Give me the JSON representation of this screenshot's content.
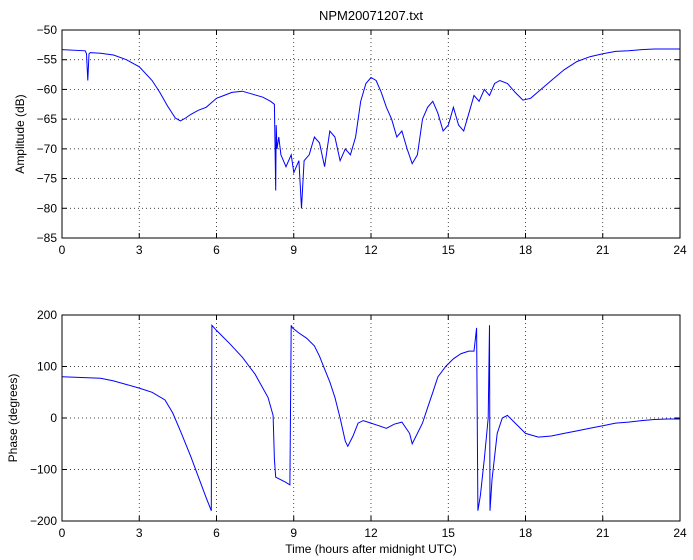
{
  "chart_data": [
    {
      "type": "line",
      "title": "NPM20071207.txt",
      "xlabel": "",
      "ylabel": "Amplitude (dB)",
      "xlim": [
        0,
        24
      ],
      "ylim": [
        -85,
        -50
      ],
      "xticks": [
        0,
        3,
        6,
        9,
        12,
        15,
        18,
        21,
        24
      ],
      "xtick_labels": [
        "0",
        "3",
        "6",
        "9",
        "12",
        "15",
        "18",
        "21",
        "24"
      ],
      "yticks": [
        -85,
        -80,
        -75,
        -70,
        -65,
        -60,
        -55,
        -50
      ],
      "ytick_labels": [
        "−85",
        "−80",
        "−75",
        "−70",
        "−65",
        "−60",
        "−55",
        "−50"
      ],
      "grid": true,
      "series": [
        {
          "color": "#0000ff",
          "x": [
            0,
            0.9,
            0.95,
            1.0,
            1.05,
            1.1,
            1.5,
            2.0,
            2.5,
            3.0,
            3.5,
            3.8,
            4.1,
            4.4,
            4.6,
            4.8,
            5.0,
            5.3,
            5.6,
            6.0,
            6.3,
            6.6,
            7.0,
            7.4,
            7.8,
            8.1,
            8.25,
            8.3,
            8.32,
            8.35,
            8.42,
            8.5,
            8.7,
            8.9,
            9.0,
            9.2,
            9.3,
            9.4,
            9.6,
            9.8,
            10.0,
            10.2,
            10.4,
            10.6,
            10.8,
            11.0,
            11.2,
            11.4,
            11.6,
            11.8,
            12.0,
            12.2,
            12.4,
            12.6,
            12.8,
            13.0,
            13.2,
            13.4,
            13.6,
            13.8,
            14.0,
            14.2,
            14.4,
            14.6,
            14.8,
            15.0,
            15.2,
            15.4,
            15.6,
            15.8,
            16.0,
            16.2,
            16.4,
            16.6,
            16.8,
            17.0,
            17.3,
            17.6,
            17.9,
            18.2,
            18.6,
            19.0,
            19.5,
            20.0,
            20.5,
            21.0,
            21.5,
            22.0,
            22.5,
            23.0,
            23.5,
            24
          ],
          "y": [
            -53.3,
            -53.5,
            -54,
            -58.5,
            -54,
            -53.8,
            -53.9,
            -54.2,
            -55,
            -56.2,
            -58.5,
            -60.5,
            -62.8,
            -64.8,
            -65.3,
            -64.8,
            -64.2,
            -63.5,
            -63,
            -61.5,
            -61,
            -60.5,
            -60.3,
            -60.8,
            -61.3,
            -62,
            -62.5,
            -77,
            -66,
            -70,
            -68,
            -71,
            -73,
            -71,
            -74,
            -72,
            -80,
            -72,
            -71,
            -68,
            -69,
            -73,
            -67,
            -68,
            -72,
            -70,
            -71,
            -68,
            -62,
            -59,
            -58,
            -58.5,
            -60.5,
            -63,
            -65,
            -68,
            -67,
            -70,
            -72.5,
            -71,
            -65,
            -63,
            -62,
            -64,
            -67,
            -66,
            -63,
            -66,
            -67,
            -64,
            -61,
            -62,
            -60,
            -61,
            -59,
            -58.5,
            -59,
            -60.5,
            -61.8,
            -61.5,
            -60,
            -58.5,
            -56.7,
            -55.3,
            -54.5,
            -54,
            -53.6,
            -53.5,
            -53.3,
            -53.2,
            -53.2,
            -53.2
          ]
        }
      ]
    },
    {
      "type": "line",
      "title": "",
      "xlabel": "Time (hours after midnight UTC)",
      "ylabel": "Phase (degrees)",
      "xlim": [
        0,
        24
      ],
      "ylim": [
        -200,
        200
      ],
      "xticks": [
        0,
        3,
        6,
        9,
        12,
        15,
        18,
        21,
        24
      ],
      "xtick_labels": [
        "0",
        "3",
        "6",
        "9",
        "12",
        "15",
        "18",
        "21",
        "24"
      ],
      "yticks": [
        -200,
        -100,
        0,
        100,
        200
      ],
      "ytick_labels": [
        "−200",
        "−100",
        "0",
        "100",
        "200"
      ],
      "grid": true,
      "series": [
        {
          "color": "#0000ff",
          "x": [
            0,
            0.5,
            1.0,
            1.5,
            2.0,
            2.5,
            3.0,
            3.5,
            4.0,
            4.3,
            4.6,
            5.0,
            5.3,
            5.6,
            5.8,
            5.82,
            6.0,
            6.5,
            7.0,
            7.5,
            8.0,
            8.2,
            8.25,
            8.3,
            8.5,
            8.7,
            8.85,
            8.9,
            8.95,
            9.2,
            9.5,
            9.8,
            10.0,
            10.2,
            10.4,
            10.6,
            10.8,
            11.0,
            11.1,
            11.3,
            11.5,
            11.7,
            12.0,
            12.3,
            12.6,
            12.9,
            13.2,
            13.5,
            13.6,
            13.7,
            14.0,
            14.2,
            14.4,
            14.6,
            14.9,
            15.2,
            15.5,
            15.8,
            16.0,
            16.1,
            16.15,
            16.25,
            16.4,
            16.55,
            16.6,
            16.62,
            16.7,
            16.9,
            17.1,
            17.3,
            17.6,
            18.0,
            18.5,
            19.0,
            19.5,
            20.0,
            20.5,
            21.0,
            21.5,
            22.0,
            22.5,
            23.0,
            23.5,
            24
          ],
          "y": [
            80,
            79,
            78,
            77,
            72,
            65,
            58,
            50,
            35,
            10,
            -25,
            -75,
            -115,
            -155,
            -180,
            180,
            170,
            145,
            118,
            85,
            40,
            5,
            -80,
            -115,
            -120,
            -125,
            -130,
            180,
            175,
            165,
            155,
            140,
            120,
            95,
            70,
            40,
            0,
            -45,
            -55,
            -35,
            -10,
            -5,
            -10,
            -15,
            -20,
            -12,
            -8,
            -30,
            -50,
            -40,
            -10,
            20,
            50,
            80,
            100,
            115,
            125,
            130,
            130,
            175,
            -180,
            -150,
            -80,
            0,
            180,
            -180,
            -120,
            -30,
            0,
            5,
            -10,
            -30,
            -37,
            -35,
            -30,
            -25,
            -20,
            -15,
            -10,
            -8,
            -5,
            -3,
            -2,
            -2
          ]
        }
      ]
    }
  ]
}
